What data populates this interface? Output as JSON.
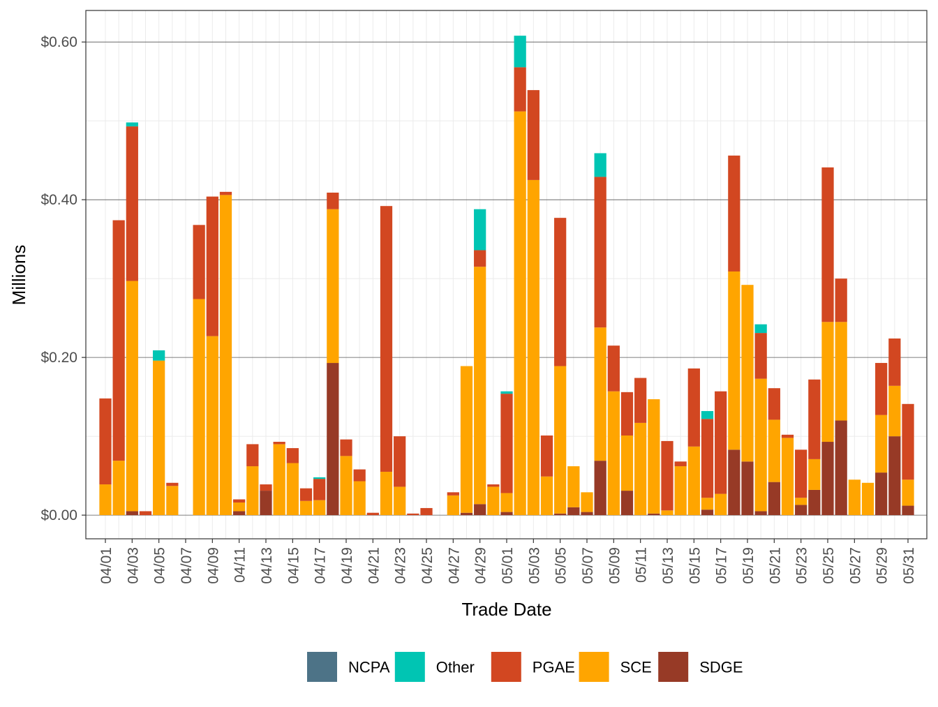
{
  "chart_data": {
    "type": "bar",
    "stacked": true,
    "xlabel": "Trade Date",
    "ylabel": "Millions",
    "ylim": [
      -0.03,
      0.64
    ],
    "yticks": [
      {
        "value": 0.0,
        "label": "$0.00"
      },
      {
        "value": 0.2,
        "label": "$0.20"
      },
      {
        "value": 0.4,
        "label": "$0.40"
      },
      {
        "value": 0.6,
        "label": "$0.60"
      }
    ],
    "grid": true,
    "legend_position": "bottom",
    "categories": [
      "04/01",
      "04/02",
      "04/03",
      "04/04",
      "04/05",
      "04/06",
      "04/07",
      "04/08",
      "04/09",
      "04/10",
      "04/11",
      "04/12",
      "04/13",
      "04/14",
      "04/15",
      "04/16",
      "04/17",
      "04/18",
      "04/19",
      "04/20",
      "04/21",
      "04/22",
      "04/23",
      "04/24",
      "04/25",
      "04/26",
      "04/27",
      "04/28",
      "04/29",
      "04/30",
      "05/01",
      "05/02",
      "05/03",
      "05/04",
      "05/05",
      "05/06",
      "05/07",
      "05/08",
      "05/09",
      "05/10",
      "05/11",
      "05/12",
      "05/13",
      "05/14",
      "05/15",
      "05/16",
      "05/17",
      "05/18",
      "05/19",
      "05/20",
      "05/21",
      "05/22",
      "05/23",
      "05/24",
      "05/25",
      "05/26",
      "05/27",
      "05/28",
      "05/29",
      "05/30",
      "05/31"
    ],
    "tick_labels": [
      "04/01",
      "04/03",
      "04/05",
      "04/07",
      "04/09",
      "04/11",
      "04/13",
      "04/15",
      "04/17",
      "04/19",
      "04/21",
      "04/23",
      "04/25",
      "04/27",
      "04/29",
      "05/01",
      "05/03",
      "05/05",
      "05/07",
      "05/09",
      "05/11",
      "05/13",
      "05/15",
      "05/17",
      "05/19",
      "05/21",
      "05/23",
      "05/25",
      "05/27",
      "05/29",
      "05/31"
    ],
    "series": [
      {
        "name": "SDGE",
        "color": "#973a26",
        "values": [
          0,
          0,
          0.005,
          0,
          0,
          0,
          0,
          0,
          0,
          0,
          0.005,
          0,
          0.031,
          0,
          0,
          0,
          0,
          0.193,
          0,
          0,
          0,
          0,
          0,
          0,
          0,
          0,
          0,
          0.003,
          0.014,
          0,
          0.004,
          0,
          0,
          0,
          0.002,
          0.01,
          0.004,
          0.069,
          0,
          0.031,
          0,
          0.002,
          0,
          0,
          0,
          0.007,
          0,
          0.083,
          0.068,
          0.005,
          0.042,
          0,
          0.013,
          0.032,
          0.093,
          0.12,
          0,
          0,
          0.054,
          0.1,
          0.012
        ]
      },
      {
        "name": "SCE",
        "color": "#ffa500",
        "values": [
          0.039,
          0.069,
          0.292,
          0,
          0.196,
          0.037,
          0,
          0.274,
          0.227,
          0.406,
          0.011,
          0.062,
          0,
          0.09,
          0.066,
          0.018,
          0.019,
          0.195,
          0.075,
          0.043,
          0,
          0.055,
          0.036,
          0,
          0,
          0,
          0.025,
          0.186,
          0.301,
          0.036,
          0.024,
          0.512,
          0.425,
          0.049,
          0.187,
          0.052,
          0.025,
          0.169,
          0.157,
          0.07,
          0.117,
          0.145,
          0.006,
          0.062,
          0.087,
          0.015,
          0.027,
          0.226,
          0.224,
          0.168,
          0.079,
          0.098,
          0.009,
          0.039,
          0.152,
          0.125,
          0.045,
          0.041,
          0.073,
          0.064,
          0.033
        ]
      },
      {
        "name": "PGAE",
        "color": "#d24721",
        "values": [
          0.109,
          0.305,
          0.196,
          0.005,
          0,
          0.004,
          0,
          0.094,
          0.177,
          0.004,
          0.004,
          0.028,
          0.008,
          0.003,
          0.019,
          0.016,
          0.027,
          0.021,
          0.021,
          0.015,
          0.003,
          0.337,
          0.064,
          0.002,
          0.009,
          0,
          0.004,
          0,
          0.021,
          0.003,
          0.126,
          0.056,
          0.114,
          0.052,
          0.188,
          0,
          0,
          0.191,
          0.058,
          0.055,
          0.057,
          0,
          0.088,
          0.006,
          0.099,
          0.1,
          0.13,
          0.147,
          0,
          0.058,
          0.04,
          0.004,
          0.061,
          0.101,
          0.196,
          0.055,
          0,
          0,
          0.066,
          0.06,
          0.096
        ]
      },
      {
        "name": "Other",
        "color": "#00c5b3",
        "values": [
          0,
          0,
          0.005,
          0,
          0.013,
          0,
          0,
          0,
          0,
          0,
          0,
          0,
          0,
          0,
          0,
          0,
          0.002,
          0,
          0,
          0,
          0,
          0,
          0,
          0,
          0,
          0,
          0,
          0,
          0.052,
          0,
          0.003,
          0.04,
          0,
          0,
          0,
          0,
          0,
          0.03,
          0,
          0,
          0,
          0,
          0,
          0,
          0,
          0.01,
          0,
          0,
          0,
          0.011,
          0,
          0,
          0,
          0,
          0,
          0,
          0,
          0,
          0,
          0,
          0
        ]
      },
      {
        "name": "NCPA",
        "color": "#4d7387",
        "values": [
          0,
          0,
          0,
          0,
          0,
          0,
          0,
          0,
          0,
          0,
          0,
          0,
          0,
          0,
          0,
          0,
          0,
          0,
          0,
          0,
          0,
          0,
          0,
          0,
          0,
          0,
          0,
          0,
          0,
          0,
          0,
          0,
          0,
          0,
          0,
          0,
          0,
          0,
          0,
          0,
          0,
          0,
          0,
          0,
          0,
          0,
          0,
          0,
          0,
          0,
          0,
          0,
          0,
          0,
          0,
          0,
          0,
          0,
          0,
          0,
          0
        ]
      }
    ],
    "legend": [
      {
        "name": "NCPA",
        "color": "#4d7387"
      },
      {
        "name": "Other",
        "color": "#00c5b3"
      },
      {
        "name": "PGAE",
        "color": "#d24721"
      },
      {
        "name": "SCE",
        "color": "#ffa500"
      },
      {
        "name": "SDGE",
        "color": "#973a26"
      }
    ]
  }
}
